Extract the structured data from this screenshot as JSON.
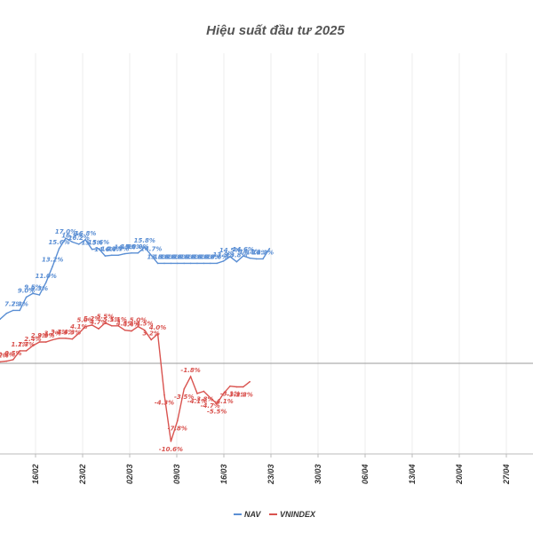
{
  "chart_data": {
    "type": "line",
    "title": "Hiệu suất đầu tư 2025",
    "xlabel": "",
    "ylabel": "",
    "ylim": [
      -13,
      30
    ],
    "x_tick_labels": [
      "16/02",
      "23/02",
      "02/03",
      "09/03",
      "16/03",
      "23/03",
      "30/03",
      "06/04",
      "13/04",
      "20/04",
      "27/04"
    ],
    "grid": "vertical",
    "zero_line": true,
    "legend_position": "bottom",
    "series": [
      {
        "name": "NAV",
        "color": "#5b8fd4",
        "values": [
          6.0,
          6.8,
          7.2,
          7.2,
          9.0,
          9.5,
          9.3,
          11.0,
          13.2,
          15.6,
          17.0,
          16.5,
          16.2,
          16.8,
          15.5,
          15.6,
          14.6,
          14.7,
          14.7,
          14.9,
          15.0,
          15.0,
          15.8,
          14.7,
          13.6,
          13.6,
          13.6,
          13.6,
          13.6,
          13.6,
          13.6,
          13.6,
          13.6,
          13.6,
          13.9,
          14.5,
          13.8,
          14.6,
          14.3,
          14.2,
          14.2,
          15.6
        ],
        "labels": [
          "",
          "",
          "7.2%",
          "7.2%",
          "9.0%",
          "9.5%",
          "9.3%",
          "11.0%",
          "13.2%",
          "15.6%",
          "17.0%",
          "16.5%",
          "16.2%",
          "16.8%",
          "15.5%",
          "15.6%",
          "14.6%",
          "14.7%",
          "14.7%",
          "14.9%",
          "15.0%",
          "15.0%",
          "15.8%",
          "14.7%",
          "13.6%",
          "13.6%",
          "13.6%",
          "13.6%",
          "13.6%",
          "13.6%",
          "13.6%",
          "13.6%",
          "13.6%",
          "13.6%",
          "13.9%",
          "14.5%",
          "13.8%",
          "14.6%",
          "14.3%",
          "14.2%",
          "14.2%",
          ""
        ]
      },
      {
        "name": "VNINDEX",
        "color": "#d9534f",
        "values": [
          0.2,
          0.3,
          0.5,
          1.7,
          1.7,
          2.4,
          2.9,
          2.9,
          3.2,
          3.4,
          3.4,
          3.3,
          4.1,
          5.0,
          5.2,
          4.7,
          5.5,
          5.1,
          5.1,
          4.5,
          4.4,
          5.0,
          4.5,
          3.2,
          4.0,
          -4.3,
          -10.6,
          -7.8,
          -3.5,
          -1.8,
          -4.1,
          -3.8,
          -4.7,
          -5.5,
          -4.1,
          -3.1,
          -3.2,
          -3.2,
          -2.5
        ],
        "labels": [
          "0.2%",
          "0.3%",
          "0.5%",
          "1.7%",
          "1.7%",
          "2.4%",
          "2.9%",
          "2.9%",
          "3.2%",
          "3.4%",
          "3.4%",
          "3.3%",
          "4.1%",
          "5.0%",
          "5.2%",
          "4.7%",
          "5.5%",
          "5.1%",
          "5.1%",
          "4.5%",
          "4.4%",
          "5.0%",
          "4.5%",
          "3.2%",
          "4.0%",
          "-4.3%",
          "-10.6%",
          "-7.8%",
          "-3.5%",
          "-1.8%",
          "-4.1%",
          "-3.8%",
          "-4.7%",
          "-5.5%",
          "-4.1%",
          "-3.1%",
          "-3.2%",
          "-3.2%",
          ""
        ]
      }
    ]
  }
}
